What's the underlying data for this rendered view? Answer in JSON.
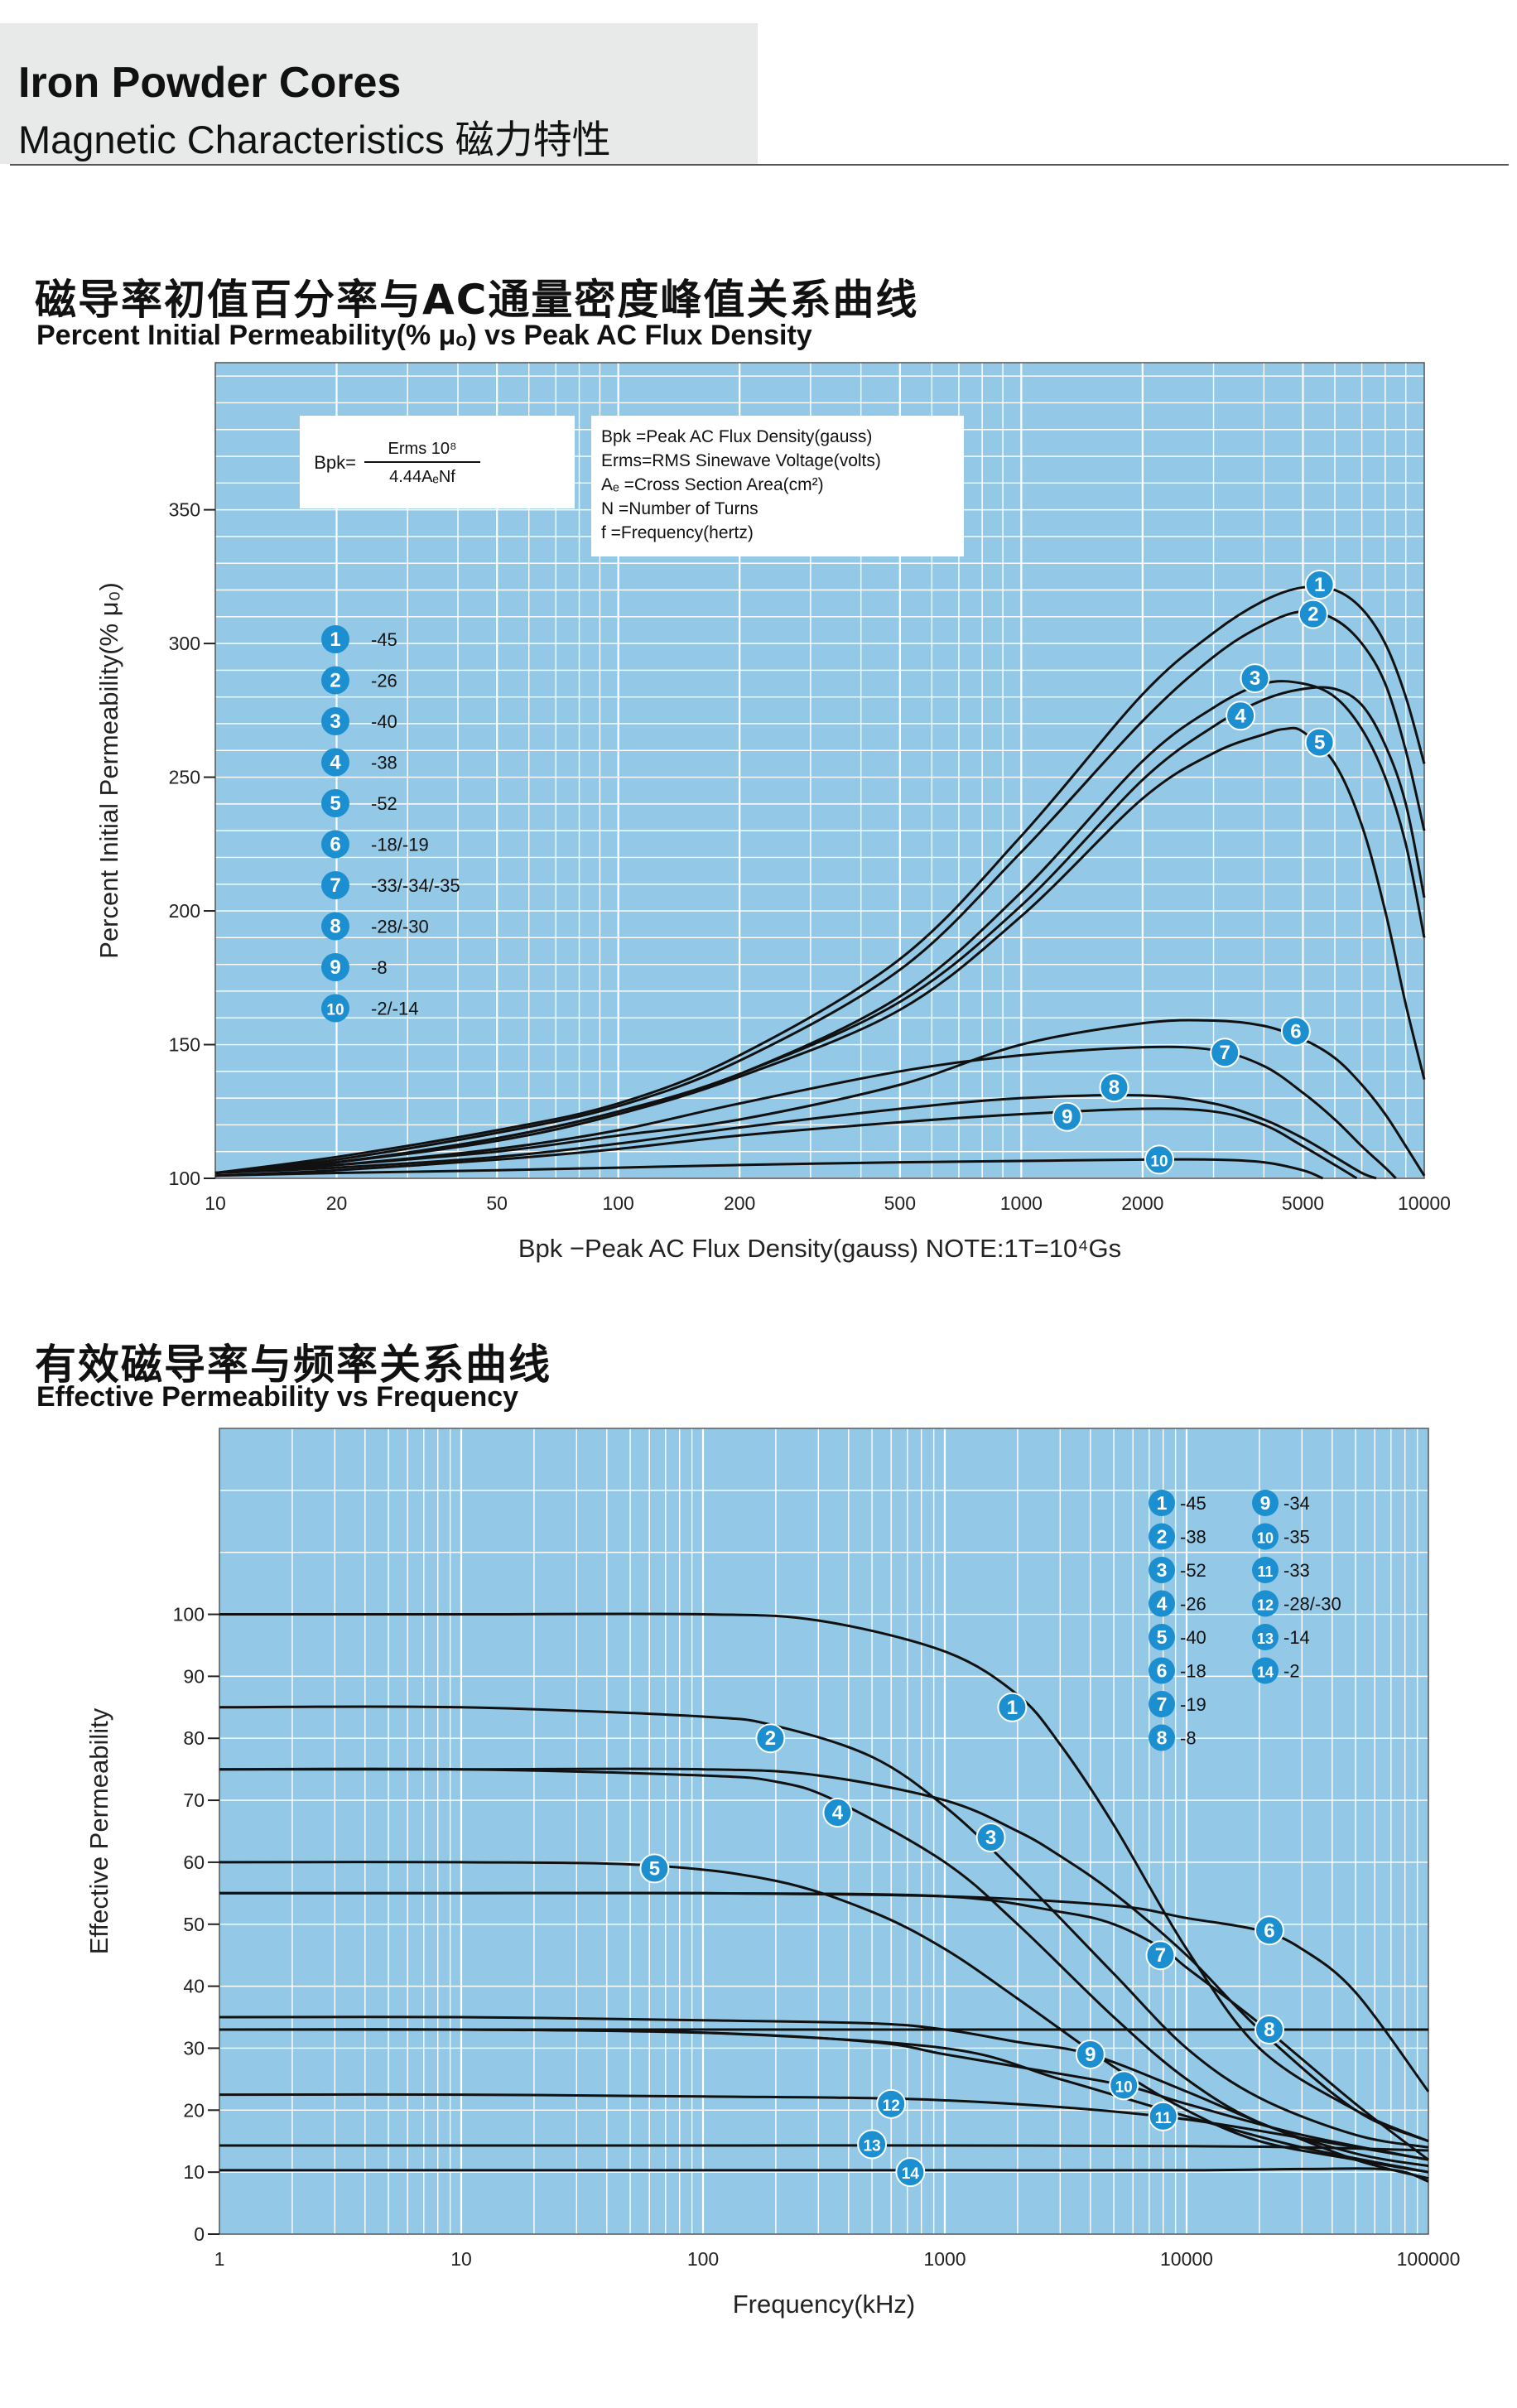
{
  "header": {
    "title": "Iron Powder Cores",
    "subtitle": "Magnetic Characteristics 磁力特性"
  },
  "section1": {
    "title_cn": "磁导率初值百分率与AC通量密度峰值关系曲线",
    "title_en": "Percent Initial Permeability(% μₒ) vs Peak AC Flux Density"
  },
  "section2": {
    "title_cn": "有效磁导率与频率关系曲线",
    "title_en": "Effective Permeability vs Frequency"
  },
  "colors": {
    "plot_bg": "#93c9e6",
    "grid": "#ffffff",
    "curve": "#111111",
    "marker": "#1c8fd0",
    "marker_text": "#ffffff"
  },
  "chart_data": [
    {
      "type": "line",
      "id": "chart1",
      "title": "Percent Initial Permeability(% μₒ) vs Peak AC Flux Density",
      "xlabel": "Bpk −Peak AC Flux Density(gauss)  NOTE:1T=10⁴Gs",
      "ylabel": "Percent Initial Permeability(% μ₀)",
      "xscale": "log",
      "xlim": [
        10,
        10000
      ],
      "ylim": [
        100,
        405
      ],
      "x_ticks": [
        10,
        20,
        50,
        100,
        200,
        500,
        1000,
        2000,
        5000,
        10000
      ],
      "x_tick_labels": [
        "10",
        "20",
        "50",
        "100",
        "200",
        "500",
        "1000",
        "2000",
        "5000",
        "10000"
      ],
      "y_ticks": [
        100,
        150,
        200,
        250,
        300,
        350
      ],
      "y_tick_labels": [
        "100",
        "150",
        "200",
        "250",
        "300",
        "350"
      ],
      "formula": {
        "lhs": "Bpk=",
        "numerator": "Erms 10⁸",
        "denominator": "4.44AₑNf"
      },
      "definitions": [
        "Bpk =Peak AC Flux Density(gauss)",
        "Erms=RMS Sinewave Voltage(volts)",
        "Aₑ   =Cross Section Area(cm²)",
        "N    =Number of Turns",
        "f     =Frequency(hertz)"
      ],
      "legend": [
        {
          "num": "1",
          "label": "-45"
        },
        {
          "num": "2",
          "label": "-26"
        },
        {
          "num": "3",
          "label": "-40"
        },
        {
          "num": "4",
          "label": "-38"
        },
        {
          "num": "5",
          "label": "-52"
        },
        {
          "num": "6",
          "label": "-18/-19"
        },
        {
          "num": "7",
          "label": "-33/-34/-35"
        },
        {
          "num": "8",
          "label": "-28/-30"
        },
        {
          "num": "9",
          "label": "-8"
        },
        {
          "num": "10",
          "label": "-2/-14"
        }
      ],
      "series": [
        {
          "name": "1",
          "x": [
            10,
            20,
            50,
            100,
            200,
            500,
            1000,
            2000,
            3000,
            4000,
            5000,
            6000,
            7000,
            8000,
            9000,
            10000
          ],
          "y": [
            102,
            108,
            118,
            128,
            146,
            182,
            228,
            281,
            304,
            316,
            321,
            320,
            313,
            300,
            280,
            255
          ]
        },
        {
          "name": "2",
          "x": [
            10,
            20,
            50,
            100,
            200,
            500,
            1000,
            2000,
            3000,
            4000,
            5000,
            6000,
            7000,
            8000,
            9000,
            10000
          ],
          "y": [
            102,
            107,
            117,
            127,
            144,
            178,
            222,
            271,
            295,
            307,
            312,
            309,
            300,
            285,
            260,
            230
          ]
        },
        {
          "name": "3",
          "x": [
            10,
            20,
            50,
            100,
            200,
            500,
            1000,
            2000,
            3000,
            4000,
            5000,
            6000,
            7000,
            8000,
            9000,
            10000
          ],
          "y": [
            102,
            106,
            115,
            125,
            139,
            168,
            207,
            256,
            276,
            285,
            285,
            280,
            268,
            250,
            225,
            190
          ]
        },
        {
          "name": "4",
          "x": [
            10,
            20,
            50,
            100,
            200,
            500,
            1000,
            2000,
            3000,
            4000,
            5000,
            6000,
            7000,
            8000,
            9000,
            10000
          ],
          "y": [
            102,
            106,
            115,
            125,
            139,
            166,
            202,
            249,
            269,
            279,
            283,
            283,
            277,
            262,
            240,
            205
          ]
        },
        {
          "name": "5",
          "x": [
            10,
            20,
            50,
            100,
            200,
            500,
            1000,
            2000,
            3000,
            4000,
            4500,
            5000,
            6000,
            7000,
            8000,
            9000,
            10000
          ],
          "y": [
            102,
            106,
            114,
            124,
            138,
            163,
            198,
            242,
            259,
            266,
            268,
            267,
            255,
            232,
            200,
            165,
            137
          ]
        },
        {
          "name": "6",
          "x": [
            10,
            20,
            50,
            100,
            200,
            500,
            1000,
            2000,
            3000,
            4000,
            5000,
            6000,
            7000,
            8000,
            9000,
            10000
          ],
          "y": [
            102,
            105,
            110,
            116,
            122,
            135,
            150,
            158,
            159,
            157,
            152,
            145,
            135,
            124,
            112,
            101
          ]
        },
        {
          "name": "7",
          "x": [
            10,
            20,
            50,
            100,
            200,
            500,
            1000,
            2000,
            3000,
            4000,
            5000,
            6000,
            7000,
            8000,
            8500
          ],
          "y": [
            102,
            105,
            111,
            118,
            128,
            140,
            146,
            149,
            148,
            142,
            132,
            122,
            112,
            104,
            100
          ]
        },
        {
          "name": "8",
          "x": [
            10,
            20,
            50,
            100,
            200,
            500,
            1000,
            2000,
            3000,
            4000,
            5000,
            6000,
            7000,
            7600
          ],
          "y": [
            102,
            104,
            108,
            113,
            119,
            126,
            130,
            131,
            128,
            122,
            115,
            108,
            102,
            100
          ]
        },
        {
          "name": "9",
          "x": [
            10,
            20,
            50,
            100,
            200,
            500,
            1000,
            2000,
            3000,
            4000,
            5000,
            6000,
            6800
          ],
          "y": [
            101,
            103,
            107,
            111,
            116,
            121,
            124,
            126,
            125,
            120,
            112,
            105,
            100
          ]
        },
        {
          "name": "10",
          "x": [
            10,
            20,
            50,
            100,
            200,
            500,
            1000,
            2000,
            3000,
            4000,
            5000,
            5600
          ],
          "y": [
            101,
            102,
            103,
            104,
            105,
            106,
            106.5,
            107,
            107,
            106,
            103,
            100
          ]
        }
      ],
      "markers": [
        {
          "num": "1",
          "x": 5500,
          "y": 322
        },
        {
          "num": "2",
          "x": 5300,
          "y": 311
        },
        {
          "num": "3",
          "x": 3800,
          "y": 287
        },
        {
          "num": "4",
          "x": 3500,
          "y": 273
        },
        {
          "num": "5",
          "x": 5500,
          "y": 263
        },
        {
          "num": "6",
          "x": 4800,
          "y": 155
        },
        {
          "num": "7",
          "x": 3200,
          "y": 147
        },
        {
          "num": "8",
          "x": 1700,
          "y": 134
        },
        {
          "num": "9",
          "x": 1300,
          "y": 123
        },
        {
          "num": "10",
          "x": 2200,
          "y": 107
        }
      ]
    },
    {
      "type": "line",
      "id": "chart2",
      "title": "Effective Permeability vs Frequency",
      "xlabel": "Frequency(kHz)",
      "ylabel": "Effective Permeability",
      "xscale": "log",
      "xlim": [
        1,
        100000
      ],
      "ylim": [
        0,
        130
      ],
      "x_ticks": [
        1,
        10,
        100,
        1000,
        10000,
        100000
      ],
      "x_tick_labels": [
        "1",
        "10",
        "100",
        "1000",
        "10000",
        "100000"
      ],
      "y_ticks": [
        0,
        10,
        20,
        30,
        40,
        50,
        60,
        70,
        80,
        90,
        100
      ],
      "y_tick_labels": [
        "0",
        "10",
        "20",
        "30",
        "40",
        "50",
        "60",
        "70",
        "80",
        "90",
        "100"
      ],
      "legend": [
        {
          "num": "1",
          "label": "-45"
        },
        {
          "num": "2",
          "label": "-38"
        },
        {
          "num": "3",
          "label": "-52"
        },
        {
          "num": "4",
          "label": "-26"
        },
        {
          "num": "5",
          "label": "-40"
        },
        {
          "num": "6",
          "label": "-18"
        },
        {
          "num": "7",
          "label": "-19"
        },
        {
          "num": "8",
          "label": "-8"
        },
        {
          "num": "9",
          "label": "-34"
        },
        {
          "num": "10",
          "label": "-35"
        },
        {
          "num": "11",
          "label": "-33"
        },
        {
          "num": "12",
          "label": "-28/-30"
        },
        {
          "num": "13",
          "label": "-14"
        },
        {
          "num": "14",
          "label": "-2"
        }
      ],
      "series": [
        {
          "name": "1",
          "x": [
            1,
            10,
            100,
            300,
            1000,
            2000,
            3000,
            5000,
            10000,
            20000,
            50000,
            100000
          ],
          "y": [
            100,
            100,
            100,
            99,
            94,
            87,
            79,
            66,
            46,
            30,
            20,
            15
          ]
        },
        {
          "name": "2",
          "x": [
            1,
            10,
            100,
            200,
            500,
            1000,
            2000,
            5000,
            10000,
            20000,
            50000,
            100000
          ],
          "y": [
            85,
            85,
            83.5,
            82,
            77,
            69,
            58,
            42,
            30,
            22,
            16,
            14
          ]
        },
        {
          "name": "3",
          "x": [
            1,
            10,
            100,
            300,
            1000,
            2000,
            3000,
            5000,
            10000,
            20000,
            50000,
            100000
          ],
          "y": [
            75,
            75,
            75,
            74,
            70,
            65,
            61,
            55,
            45,
            33,
            20,
            15
          ]
        },
        {
          "name": "4",
          "x": [
            1,
            10,
            100,
            200,
            350,
            1000,
            2000,
            5000,
            10000,
            20000,
            50000,
            100000
          ],
          "y": [
            75,
            75,
            74,
            73,
            70,
            60,
            50,
            35,
            25,
            18,
            13,
            11
          ]
        },
        {
          "name": "5",
          "x": [
            1,
            10,
            60,
            200,
            500,
            1000,
            2000,
            5000,
            10000,
            20000,
            50000,
            100000
          ],
          "y": [
            60,
            60,
            59.5,
            57,
            52,
            46,
            38,
            27,
            20,
            15,
            12,
            10
          ]
        },
        {
          "name": "6",
          "x": [
            1,
            10,
            100,
            1000,
            5000,
            10000,
            20000,
            30000,
            50000,
            100000
          ],
          "y": [
            55,
            55,
            55,
            54.5,
            53,
            51,
            49,
            46,
            39,
            23
          ]
        },
        {
          "name": "7",
          "x": [
            1,
            10,
            100,
            1000,
            3000,
            5000,
            8000,
            10000,
            20000,
            50000,
            100000
          ],
          "y": [
            55,
            55,
            55,
            54.5,
            52,
            50,
            46,
            43,
            34,
            21,
            12
          ]
        },
        {
          "name": "8",
          "x": [
            1,
            10,
            100,
            1000,
            10000,
            30000,
            100000
          ],
          "y": [
            33,
            33,
            33,
            33,
            33,
            33,
            33
          ]
        },
        {
          "name": "9",
          "x": [
            1,
            10,
            100,
            500,
            1000,
            2000,
            4000,
            10000,
            20000,
            50000,
            100000
          ],
          "y": [
            35,
            35,
            34.5,
            34,
            33,
            31,
            29,
            23,
            18,
            12,
            9
          ]
        },
        {
          "name": "10",
          "x": [
            1,
            10,
            100,
            500,
            1000,
            2000,
            5500,
            10000,
            30000,
            100000
          ],
          "y": [
            33,
            33,
            32.5,
            31,
            29,
            27,
            24,
            21,
            16,
            12
          ]
        },
        {
          "name": "11",
          "x": [
            1,
            10,
            100,
            1000,
            3000,
            10000,
            30000,
            100000
          ],
          "y": [
            33,
            33,
            32.5,
            30,
            25,
            19,
            14,
            10
          ]
        },
        {
          "name": "12",
          "x": [
            1,
            10,
            100,
            700,
            3000,
            10000,
            30000,
            100000
          ],
          "y": [
            22.5,
            22.5,
            22.2,
            21.8,
            20.5,
            18.5,
            15.5,
            12
          ]
        },
        {
          "name": "13",
          "x": [
            1,
            10,
            100,
            1000,
            10000,
            30000,
            100000
          ],
          "y": [
            14.3,
            14.3,
            14.3,
            14.3,
            14.2,
            14,
            13.5
          ]
        },
        {
          "name": "14",
          "x": [
            1,
            10,
            100,
            1000,
            10000,
            30000,
            70000,
            100000
          ],
          "y": [
            10.3,
            10.3,
            10.3,
            10.3,
            10.3,
            10.5,
            10.4,
            8.5
          ]
        }
      ],
      "markers": [
        {
          "num": "1",
          "x": 1900,
          "y": 85
        },
        {
          "num": "2",
          "x": 190,
          "y": 80
        },
        {
          "num": "3",
          "x": 1550,
          "y": 64
        },
        {
          "num": "4",
          "x": 360,
          "y": 68
        },
        {
          "num": "5",
          "x": 63,
          "y": 59
        },
        {
          "num": "6",
          "x": 22000,
          "y": 49
        },
        {
          "num": "7",
          "x": 7800,
          "y": 45
        },
        {
          "num": "8",
          "x": 22000,
          "y": 33
        },
        {
          "num": "9",
          "x": 4000,
          "y": 29
        },
        {
          "num": "10",
          "x": 5500,
          "y": 24
        },
        {
          "num": "11",
          "x": 8000,
          "y": 19
        },
        {
          "num": "12",
          "x": 600,
          "y": 21
        },
        {
          "num": "13",
          "x": 500,
          "y": 14.5
        },
        {
          "num": "14",
          "x": 720,
          "y": 10
        }
      ]
    }
  ]
}
